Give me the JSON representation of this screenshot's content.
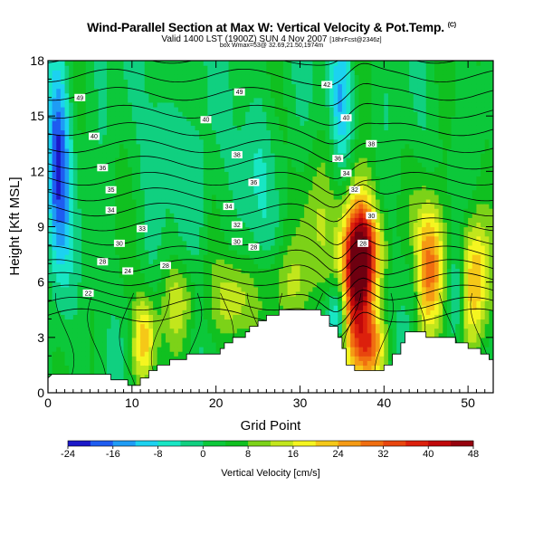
{
  "header": {
    "title": "Wind-Parallel Section at Max W: Vertical Velocity & Pot.Temp.",
    "title_mark": "(C)",
    "valid_main": "Valid 1400 LST (1900Z) SUN 4 Nov 2007",
    "valid_small": "[18hrFcst@2346z]",
    "box_info": "box Wmax=53@ 32.69,21.50,1974m"
  },
  "chart_data": {
    "type": "heatmap",
    "title": "Wind-Parallel Section at Max W: Vertical Velocity & Pot.Temp.",
    "xlabel": "Grid Point",
    "ylabel": "Height [Kft MSL]",
    "xlim": [
      0,
      53
    ],
    "ylim": [
      0,
      18
    ],
    "xticks": [
      0,
      10,
      20,
      30,
      40,
      50
    ],
    "yticks": [
      0,
      3,
      6,
      9,
      12,
      15,
      18
    ],
    "colorbar": {
      "label": "Vertical Velocity [cm/s]",
      "ticks": [
        -24,
        -16,
        -8,
        0,
        8,
        16,
        24,
        32,
        40,
        48
      ],
      "range": [
        -24,
        48
      ]
    },
    "terrain": [
      [
        0,
        0.8
      ],
      [
        0.5,
        1.0
      ],
      [
        1.5,
        1.0
      ],
      [
        2.5,
        1.0
      ],
      [
        7.5,
        1.0
      ],
      [
        7.5,
        0.7
      ],
      [
        9.5,
        0.7
      ],
      [
        9.5,
        0.4
      ],
      [
        11,
        0.4
      ],
      [
        11,
        0.8
      ],
      [
        12,
        0.8
      ],
      [
        12,
        1.2
      ],
      [
        13,
        1.2
      ],
      [
        13,
        1.5
      ],
      [
        14.5,
        1.5
      ],
      [
        14.5,
        1.8
      ],
      [
        16.5,
        1.8
      ],
      [
        16.5,
        2.1
      ],
      [
        20.5,
        2.1
      ],
      [
        20.5,
        2.4
      ],
      [
        21,
        2.4
      ],
      [
        21,
        2.7
      ],
      [
        22,
        2.7
      ],
      [
        22,
        3.0
      ],
      [
        23.5,
        3.0
      ],
      [
        23.5,
        3.3
      ],
      [
        24,
        3.3
      ],
      [
        24,
        3.6
      ],
      [
        25,
        3.6
      ],
      [
        25,
        3.9
      ],
      [
        26,
        3.9
      ],
      [
        26,
        4.2
      ],
      [
        27.5,
        4.2
      ],
      [
        27.5,
        4.5
      ],
      [
        32.5,
        4.5
      ],
      [
        32.5,
        4.2
      ],
      [
        33.5,
        4.2
      ],
      [
        33.5,
        3.6
      ],
      [
        34.5,
        3.6
      ],
      [
        34.5,
        3.0
      ],
      [
        35,
        3.0
      ],
      [
        35,
        2.4
      ],
      [
        35.5,
        2.4
      ],
      [
        35.5,
        1.5
      ],
      [
        36.5,
        1.5
      ],
      [
        36.5,
        1.2
      ],
      [
        40,
        1.2
      ],
      [
        40,
        1.5
      ],
      [
        41,
        1.5
      ],
      [
        41,
        2.1
      ],
      [
        42,
        2.1
      ],
      [
        42,
        2.7
      ],
      [
        42.5,
        2.7
      ],
      [
        42.5,
        3.3
      ],
      [
        45,
        3.3
      ],
      [
        45,
        3.0
      ],
      [
        48.5,
        3.0
      ],
      [
        48.5,
        2.7
      ],
      [
        50,
        2.7
      ],
      [
        50,
        2.4
      ],
      [
        51.5,
        2.4
      ],
      [
        51.5,
        2.1
      ],
      [
        52.5,
        2.1
      ],
      [
        52.5,
        1.8
      ],
      [
        53,
        1.8
      ]
    ],
    "updrafts": [
      {
        "x": 36.8,
        "y": 6.3,
        "sx": 1.3,
        "sy": 3.2,
        "w": 48
      },
      {
        "x": 37.8,
        "y": 7.8,
        "sx": 1.5,
        "sy": 1.6,
        "w": 22
      },
      {
        "x": 45.5,
        "y": 6.8,
        "sx": 1.3,
        "sy": 2.6,
        "w": 30
      },
      {
        "x": 50.8,
        "y": 6.2,
        "sx": 1.2,
        "sy": 2.6,
        "w": 24
      },
      {
        "x": 11.2,
        "y": 3.0,
        "sx": 1.2,
        "sy": 1.6,
        "w": 22
      },
      {
        "x": 22.0,
        "y": 5.0,
        "sx": 1.6,
        "sy": 1.6,
        "w": 14
      },
      {
        "x": 15.5,
        "y": 5.0,
        "sx": 1.5,
        "sy": 1.6,
        "w": 12
      },
      {
        "x": 28.0,
        "y": 5.8,
        "sx": 2.2,
        "sy": 1.6,
        "w": 9
      },
      {
        "x": 38.5,
        "y": 2.5,
        "sx": 1.2,
        "sy": 1.2,
        "w": 20
      },
      {
        "x": 32.0,
        "y": 9.0,
        "sx": 1.5,
        "sy": 3.0,
        "w": 8
      }
    ],
    "downdrafts": [
      {
        "x": 1.2,
        "y": 12.5,
        "sx": 1.0,
        "sy": 4.0,
        "w": -22
      },
      {
        "x": 10.0,
        "y": 3.5,
        "sx": 0.8,
        "sy": 1.2,
        "w": -8
      },
      {
        "x": 34.5,
        "y": 4.2,
        "sx": 0.8,
        "sy": 1.3,
        "w": -18
      },
      {
        "x": 35.0,
        "y": 16.0,
        "sx": 1.0,
        "sy": 2.5,
        "w": -14
      },
      {
        "x": 43.5,
        "y": 6.0,
        "sx": 0.8,
        "sy": 2.0,
        "w": -8
      },
      {
        "x": 48.5,
        "y": 5.2,
        "sx": 0.7,
        "sy": 2.0,
        "w": -12
      },
      {
        "x": 24.0,
        "y": 12.5,
        "sx": 1.5,
        "sy": 3.0,
        "w": -6
      },
      {
        "x": 18.0,
        "y": 11.0,
        "sx": 1.0,
        "sy": 3.0,
        "w": -6
      },
      {
        "x": 13.5,
        "y": 15.0,
        "sx": 1.2,
        "sy": 3.0,
        "w": -6
      }
    ],
    "contour_labels": [
      {
        "text": "49",
        "x": 3.8,
        "y": 16.0
      },
      {
        "text": "40",
        "x": 5.5,
        "y": 13.9
      },
      {
        "text": "36",
        "x": 6.5,
        "y": 12.2
      },
      {
        "text": "35",
        "x": 7.5,
        "y": 11.0
      },
      {
        "text": "34",
        "x": 7.5,
        "y": 9.9
      },
      {
        "text": "33",
        "x": 11.2,
        "y": 8.9
      },
      {
        "text": "30",
        "x": 8.5,
        "y": 8.1
      },
      {
        "text": "28",
        "x": 6.5,
        "y": 7.1
      },
      {
        "text": "24",
        "x": 9.5,
        "y": 6.6
      },
      {
        "text": "22",
        "x": 4.8,
        "y": 5.4
      },
      {
        "text": "28",
        "x": 14.0,
        "y": 6.9
      },
      {
        "text": "49",
        "x": 22.8,
        "y": 16.3
      },
      {
        "text": "40",
        "x": 18.8,
        "y": 14.8
      },
      {
        "text": "38",
        "x": 22.5,
        "y": 12.9
      },
      {
        "text": "36",
        "x": 24.5,
        "y": 11.4
      },
      {
        "text": "34",
        "x": 21.5,
        "y": 10.1
      },
      {
        "text": "32",
        "x": 22.5,
        "y": 9.1
      },
      {
        "text": "30",
        "x": 22.5,
        "y": 8.2
      },
      {
        "text": "28",
        "x": 24.5,
        "y": 7.9
      },
      {
        "text": "42",
        "x": 33.2,
        "y": 16.7
      },
      {
        "text": "40",
        "x": 35.5,
        "y": 14.9
      },
      {
        "text": "38",
        "x": 38.5,
        "y": 13.5
      },
      {
        "text": "36",
        "x": 34.5,
        "y": 12.7
      },
      {
        "text": "34",
        "x": 35.5,
        "y": 11.9
      },
      {
        "text": "32",
        "x": 36.5,
        "y": 11.0
      },
      {
        "text": "30",
        "x": 38.5,
        "y": 9.6
      },
      {
        "text": "28",
        "x": 37.5,
        "y": 8.1
      }
    ]
  }
}
